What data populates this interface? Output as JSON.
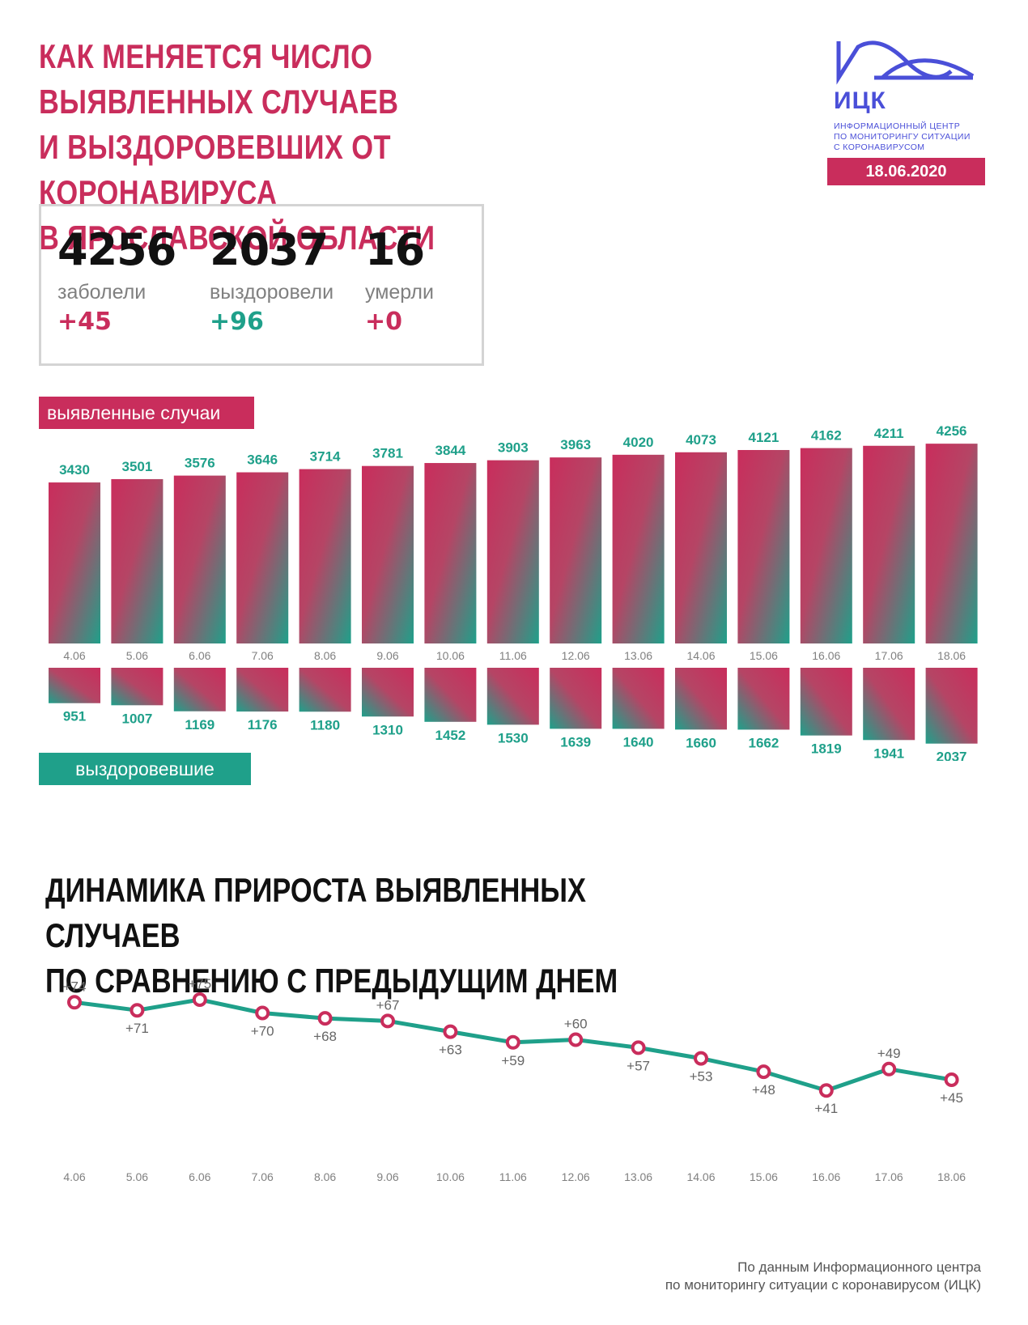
{
  "header": {
    "title_lines": [
      "КАК МЕНЯЕТСЯ ЧИСЛО ВЫЯВЛЕННЫХ СЛУЧАЕВ",
      "И ВЫЗДОРОВЕВШИХ ОТ КОРОНАВИРУСА",
      "В ЯРОСЛАВСКОЙ ОБЛАСТИ"
    ]
  },
  "logo": {
    "name": "ИЦК",
    "description_lines": [
      "ИНФОРМАЦИОННЫЙ ЦЕНТР",
      "ПО МОНИТОРИНГУ СИТУАЦИИ",
      "С КОРОНАВИРУСОМ"
    ],
    "date": "18.06.2020"
  },
  "summary": {
    "cases": {
      "value": "4256",
      "label": "заболели",
      "delta": "+45"
    },
    "recovered": {
      "value": "2037",
      "label": "выздоровели",
      "delta": "+96"
    },
    "deaths": {
      "value": "16",
      "label": "умерли",
      "delta": "+0"
    }
  },
  "colors": {
    "accent_red": "#c92d5c",
    "accent_teal": "#1fa08a",
    "text_dark": "#111111",
    "grey": "#808080"
  },
  "tags": {
    "cases": "выявленные случаи",
    "recovered": "выздоровевшие"
  },
  "chart2": {
    "title_lines": [
      "ДИНАМИКА ПРИРОСТА ВЫЯВЛЕННЫХ СЛУЧАЕВ",
      "ПО СРАВНЕНИЮ С ПРЕДЫДУЩИМ ДНЕМ"
    ]
  },
  "chart_data": [
    {
      "type": "bar",
      "categories": [
        "4.06",
        "5.06",
        "6.06",
        "7.06",
        "8.06",
        "9.06",
        "10.06",
        "11.06",
        "12.06",
        "13.06",
        "14.06",
        "15.06",
        "16.06",
        "17.06",
        "18.06"
      ],
      "series": [
        {
          "name": "выявленные случаи",
          "values": [
            3430,
            3501,
            3576,
            3646,
            3714,
            3781,
            3844,
            3903,
            3963,
            4020,
            4073,
            4121,
            4162,
            4211,
            4256
          ]
        },
        {
          "name": "выздоровевшие",
          "values": [
            951,
            1007,
            1169,
            1176,
            1180,
            1310,
            1452,
            1530,
            1639,
            1640,
            1660,
            1662,
            1819,
            1941,
            2037
          ]
        }
      ]
    },
    {
      "type": "line",
      "title": "ДИНАМИКА ПРИРОСТА ВЫЯВЛЕННЫХ СЛУЧАЕВ ПО СРАВНЕНИЮ С ПРЕДЫДУЩИМ ДНЕМ",
      "categories": [
        "4.06",
        "5.06",
        "6.06",
        "7.06",
        "8.06",
        "9.06",
        "10.06",
        "11.06",
        "12.06",
        "13.06",
        "14.06",
        "15.06",
        "16.06",
        "17.06",
        "18.06"
      ],
      "values": [
        74,
        71,
        75,
        70,
        68,
        67,
        63,
        59,
        60,
        57,
        53,
        48,
        41,
        49,
        45
      ],
      "labels": [
        "+74",
        "+71",
        "+75",
        "+70",
        "+68",
        "+67",
        "+63",
        "+59",
        "+60",
        "+57",
        "+53",
        "+48",
        "+41",
        "+49",
        "+45"
      ]
    }
  ],
  "footer": {
    "source_lines": [
      "По данным Информационного центра",
      "по мониторингу ситуации с коронавирусом (ИЦК)"
    ]
  }
}
